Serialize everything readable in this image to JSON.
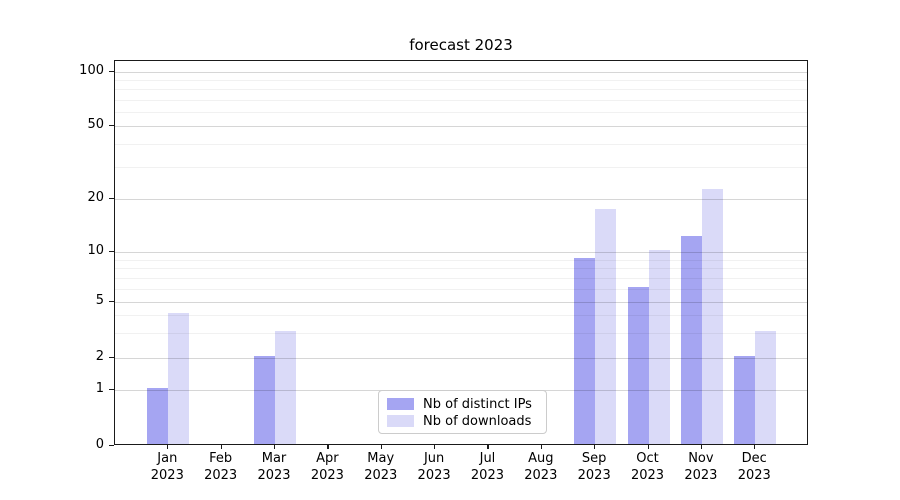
{
  "chart_data": {
    "type": "bar",
    "title": "forecast 2023",
    "categories": [
      "Jan",
      "Feb",
      "Mar",
      "Apr",
      "May",
      "Jun",
      "Jul",
      "Aug",
      "Sep",
      "Oct",
      "Nov",
      "Dec"
    ],
    "category_year": "2023",
    "series": [
      {
        "name": "Nb of distinct IPs",
        "color": "#a5a5f2",
        "values": [
          1,
          0,
          2,
          0,
          0,
          0,
          0,
          0,
          9,
          6,
          12,
          2
        ]
      },
      {
        "name": "Nb of downloads",
        "color": "#dadaf8",
        "values": [
          4,
          0,
          3,
          0,
          0,
          0,
          0,
          0,
          17,
          10,
          22,
          3
        ]
      }
    ],
    "xlabel": "",
    "ylabel": "",
    "yscale": "symlog-like",
    "y_major_ticks": [
      0,
      1,
      2,
      5,
      10,
      20,
      50,
      100
    ],
    "y_minor_ticks": [
      3,
      4,
      6,
      7,
      8,
      9,
      30,
      40,
      60,
      70,
      80,
      90
    ],
    "ylim": [
      0,
      110
    ],
    "grid": true,
    "legend_position": "lower center"
  }
}
